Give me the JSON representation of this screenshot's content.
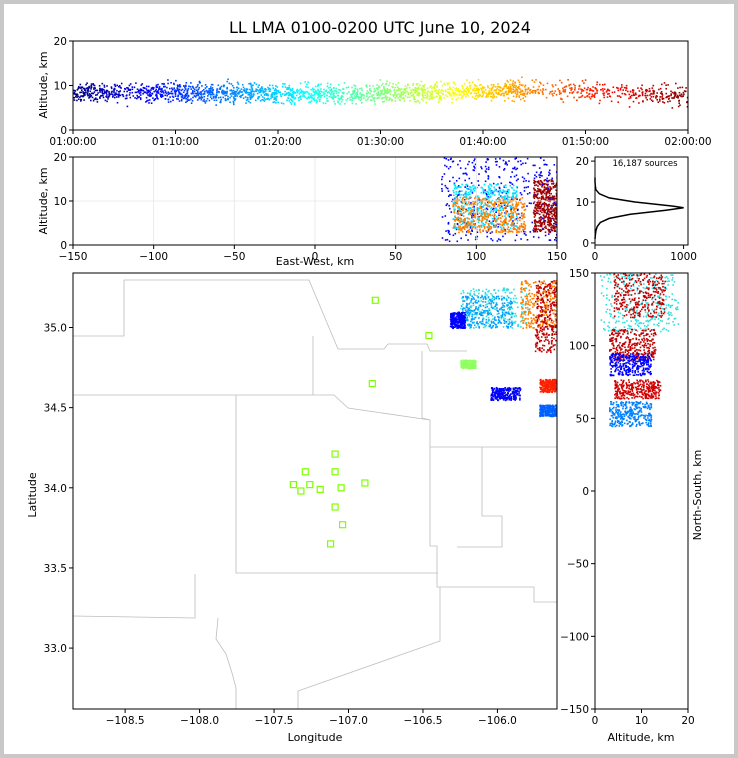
{
  "chart_data": [
    {
      "id": "time_height",
      "type": "scatter",
      "title": "LL LMA 0100-0200 UTC June 10, 2024",
      "xlabel": "",
      "ylabel": "Altitude, km",
      "x_ticks": [
        "01:00:00",
        "01:10:00",
        "01:20:00",
        "01:30:00",
        "01:40:00",
        "01:50:00",
        "02:00:00"
      ],
      "x_range_minutes": [
        0,
        60
      ],
      "ylim": [
        0,
        20
      ],
      "y_ticks": [
        0,
        10,
        20
      ],
      "color_encoding": "time (jet colormap, blue=early to dark red=late)",
      "density_by_minute": [
        {
          "minute": 0,
          "alt_center": 8.5
        },
        {
          "minute": 5,
          "alt_center": 8.5
        },
        {
          "minute": 10,
          "alt_center": 8.6
        },
        {
          "minute": 15,
          "alt_center": 8.5
        },
        {
          "minute": 20,
          "alt_center": 8.3
        },
        {
          "minute": 25,
          "alt_center": 8.2
        },
        {
          "minute": 30,
          "alt_center": 8.5
        },
        {
          "minute": 35,
          "alt_center": 8.7
        },
        {
          "minute": 40,
          "alt_center": 9.0
        },
        {
          "minute": 45,
          "alt_center": 9.2
        },
        {
          "minute": 50,
          "alt_center": 9.0
        },
        {
          "minute": 55,
          "alt_center": 8.6
        },
        {
          "minute": 60,
          "alt_center": 7.5
        }
      ]
    },
    {
      "id": "ew_height",
      "type": "scatter",
      "xlabel": "East-West, km",
      "ylabel": "Altitude, km",
      "xlim": [
        -150,
        150
      ],
      "x_ticks": [
        -150,
        -100,
        -50,
        0,
        50,
        100,
        150
      ],
      "ylim": [
        0,
        20
      ],
      "y_ticks": [
        0,
        10,
        20
      ],
      "grid": true,
      "clusters": [
        {
          "x_range": [
            78,
            150
          ],
          "alt_range": [
            1,
            20
          ],
          "color": "#0000ff"
        },
        {
          "x_range": [
            85,
            125
          ],
          "alt_range": [
            4,
            14
          ],
          "color": "#00e0ff"
        },
        {
          "x_range": [
            85,
            130
          ],
          "alt_range": [
            3,
            11
          ],
          "color": "#ff7f00"
        },
        {
          "x_range": [
            135,
            150
          ],
          "alt_range": [
            3,
            15
          ],
          "color": "#a00000"
        }
      ]
    },
    {
      "id": "alt_histogram",
      "type": "line",
      "annotation": "16,187 sources",
      "xlim": [
        0,
        1050
      ],
      "x_ticks": [
        0,
        1000
      ],
      "ylim": [
        -0.5,
        21
      ],
      "y_ticks": [
        0,
        10,
        20
      ],
      "profile": [
        {
          "alt": 1.0,
          "count": 0
        },
        {
          "alt": 2.0,
          "count": 5
        },
        {
          "alt": 3.0,
          "count": 10
        },
        {
          "alt": 4.0,
          "count": 25
        },
        {
          "alt": 5.0,
          "count": 60
        },
        {
          "alt": 6.0,
          "count": 160
        },
        {
          "alt": 7.0,
          "count": 400
        },
        {
          "alt": 8.0,
          "count": 800
        },
        {
          "alt": 8.6,
          "count": 1000
        },
        {
          "alt": 9.0,
          "count": 880
        },
        {
          "alt": 10.0,
          "count": 450
        },
        {
          "alt": 11.0,
          "count": 160
        },
        {
          "alt": 12.0,
          "count": 50
        },
        {
          "alt": 13.0,
          "count": 10
        },
        {
          "alt": 14.0,
          "count": 3
        },
        {
          "alt": 15.0,
          "count": 0
        },
        {
          "alt": 16.0,
          "count": 0
        }
      ]
    },
    {
      "id": "plan_view",
      "type": "scatter",
      "xlabel": "Longitude",
      "ylabel": "Latitude",
      "xlim": [
        -108.85,
        -105.6
      ],
      "x_ticks": [
        "−108.5",
        "−108.0",
        "−107.5",
        "−107.0",
        "−106.5",
        "−106.0"
      ],
      "x_tick_values": [
        -108.5,
        -108.0,
        -107.5,
        -107.0,
        -106.5,
        -106.0
      ],
      "ylim": [
        32.62,
        35.34
      ],
      "y_ticks": [
        "33.0",
        "33.5",
        "34.0",
        "34.5",
        "35.0"
      ],
      "y_tick_values": [
        33.0,
        33.5,
        34.0,
        34.5,
        35.0
      ],
      "stations": [
        {
          "lon": -106.82,
          "lat": 35.17
        },
        {
          "lon": -106.46,
          "lat": 34.95
        },
        {
          "lon": -106.84,
          "lat": 34.65
        },
        {
          "lon": -107.09,
          "lat": 34.21
        },
        {
          "lon": -107.29,
          "lat": 34.1
        },
        {
          "lon": -107.09,
          "lat": 34.1
        },
        {
          "lon": -107.37,
          "lat": 34.02
        },
        {
          "lon": -107.26,
          "lat": 34.02
        },
        {
          "lon": -107.32,
          "lat": 33.98
        },
        {
          "lon": -107.19,
          "lat": 33.99
        },
        {
          "lon": -107.05,
          "lat": 34.0
        },
        {
          "lon": -106.89,
          "lat": 34.03
        },
        {
          "lon": -107.09,
          "lat": 33.88
        },
        {
          "lon": -107.04,
          "lat": 33.77
        },
        {
          "lon": -107.12,
          "lat": 33.65
        }
      ],
      "clusters": [
        {
          "lon_range": [
            -106.25,
            -105.8
          ],
          "lat_range": [
            35.0,
            35.25
          ],
          "color": "#30e0e0"
        },
        {
          "lon_range": [
            -106.25,
            -105.9
          ],
          "lat_range": [
            35.0,
            35.2
          ],
          "color": "#00a0ff"
        },
        {
          "lon_range": [
            -105.85,
            -105.6
          ],
          "lat_range": [
            35.0,
            35.3
          ],
          "color": "#ff8000"
        },
        {
          "lon_range": [
            -105.75,
            -105.6
          ],
          "lat_range": [
            34.85,
            35.3
          ],
          "color": "#c00000"
        },
        {
          "lon_range": [
            -106.05,
            -105.85
          ],
          "lat_range": [
            34.55,
            34.63
          ],
          "color": "#0000ff"
        },
        {
          "lon_range": [
            -105.72,
            -105.6
          ],
          "lat_range": [
            34.6,
            34.68
          ],
          "color": "#ff2000"
        },
        {
          "lon_range": [
            -105.72,
            -105.6
          ],
          "lat_range": [
            34.45,
            34.52
          ],
          "color": "#0060ff"
        },
        {
          "lon_range": [
            -106.25,
            -106.15
          ],
          "lat_range": [
            34.75,
            34.8
          ],
          "color": "#90ff60"
        },
        {
          "lon_range": [
            -106.32,
            -106.22
          ],
          "lat_range": [
            35.0,
            35.1
          ],
          "color": "#0000ff"
        }
      ],
      "station_color": "#7fff00"
    },
    {
      "id": "ns_height",
      "type": "scatter",
      "xlabel": "Altitude, km",
      "ylabel": "North-South, km",
      "xlim": [
        0,
        20
      ],
      "x_ticks": [
        0,
        10,
        20
      ],
      "ylim": [
        -150,
        150
      ],
      "y_ticks": [
        -150,
        -100,
        -50,
        0,
        50,
        100,
        150
      ],
      "clusters": [
        {
          "alt_range": [
            1,
            18
          ],
          "ns_range": [
            110,
            150
          ],
          "color": "#30e0e0"
        },
        {
          "alt_range": [
            4,
            15
          ],
          "ns_range": [
            120,
            150
          ],
          "color": "#c00000"
        },
        {
          "alt_range": [
            3,
            13
          ],
          "ns_range": [
            90,
            112
          ],
          "color": "#c00000"
        },
        {
          "alt_range": [
            4,
            14
          ],
          "ns_range": [
            64,
            77
          ],
          "color": "#d00000"
        },
        {
          "alt_range": [
            3,
            12
          ],
          "ns_range": [
            45,
            62
          ],
          "color": "#0080ff"
        },
        {
          "alt_range": [
            3,
            12
          ],
          "ns_range": [
            80,
            95
          ],
          "color": "#0000ff"
        }
      ]
    }
  ]
}
